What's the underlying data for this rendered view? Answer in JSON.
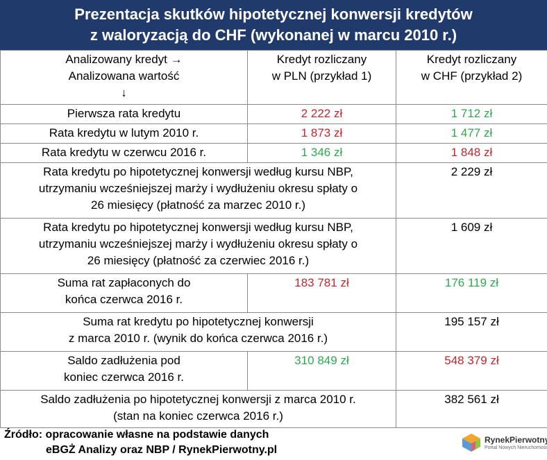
{
  "header": {
    "title_line1": "Prezentacja skutków hipotetycznej konwersji kredytów",
    "title_line2": "z waloryzacją do CHF (wykonanej w marcu 2010 r.)"
  },
  "table": {
    "head": {
      "col1_line1": "Analizowany kredyt →",
      "col1_line2": "Analizowana wartość",
      "col1_line3": "↓",
      "col2_line1": "Kredyt rozliczany",
      "col2_line2": "w PLN (przykład 1)",
      "col3_line1": "Kredyt rozliczany",
      "col3_line2": "w CHF (przykład 2)"
    },
    "rows": [
      {
        "label": "Pierwsza rata kredytu",
        "pln": "2 222 zł",
        "chf": "1 712 zł"
      },
      {
        "label": "Rata kredytu w lutym 2010 r.",
        "pln": "1 873 zł",
        "chf": "1 477 zł"
      },
      {
        "label": "Rata kredytu w czerwcu 2016 r.",
        "pln": "1 346 zł",
        "chf": "1 848 zł"
      },
      {
        "label_line1": "Rata kredytu po hipotetycznej konwersji według kursu NBP,",
        "label_line2": "utrzymaniu wcześniejszej marży i wydłużeniu okresu spłaty o",
        "label_line3": "26 miesięcy (płatność za marzec 2010 r.)",
        "value": "2 229 zł"
      },
      {
        "label_line1": "Rata kredytu po hipotetycznej konwersji według kursu NBP,",
        "label_line2": "utrzymaniu wcześniejszej marży i wydłużeniu okresu spłaty o",
        "label_line3": "26 miesięcy (płatność za czerwiec 2016 r.)",
        "value": "1 609 zł"
      },
      {
        "label_line1": "Suma rat zapłaconych do",
        "label_line2": "końca czerwca 2016 r.",
        "pln": "183 781 zł",
        "chf": "176 119 zł"
      },
      {
        "label_line1": "Suma rat kredytu po hipotetycznej konwersji",
        "label_line2": "z marca 2010 r. (wynik do końca czerwca 2016 r.)",
        "value": "195 157 zł"
      },
      {
        "label_line1": "Saldo zadłużenia pod",
        "label_line2": "koniec czerwca 2016 r.",
        "pln": "310 849 zł",
        "chf": "548 379 zł"
      },
      {
        "label_line1": "Saldo zadłużenia po hipotetycznej konwersji z marca 2010 r.",
        "label_line2": "(stan na koniec czerwca 2016 r.)",
        "value": "382 561 zł"
      }
    ]
  },
  "source": {
    "line1": "Źródło: opracowanie własne na podstawie danych",
    "line2": "eBGŻ Analizy oraz NBP / RynekPierwotny.pl"
  },
  "logo": {
    "name": "RynekPierwotny",
    "subtitle": "Portal Nowych Nieruchomości"
  },
  "colors": {
    "header_bg": "#1f3a6b",
    "red": "#c0282d",
    "green": "#2fa84f"
  }
}
